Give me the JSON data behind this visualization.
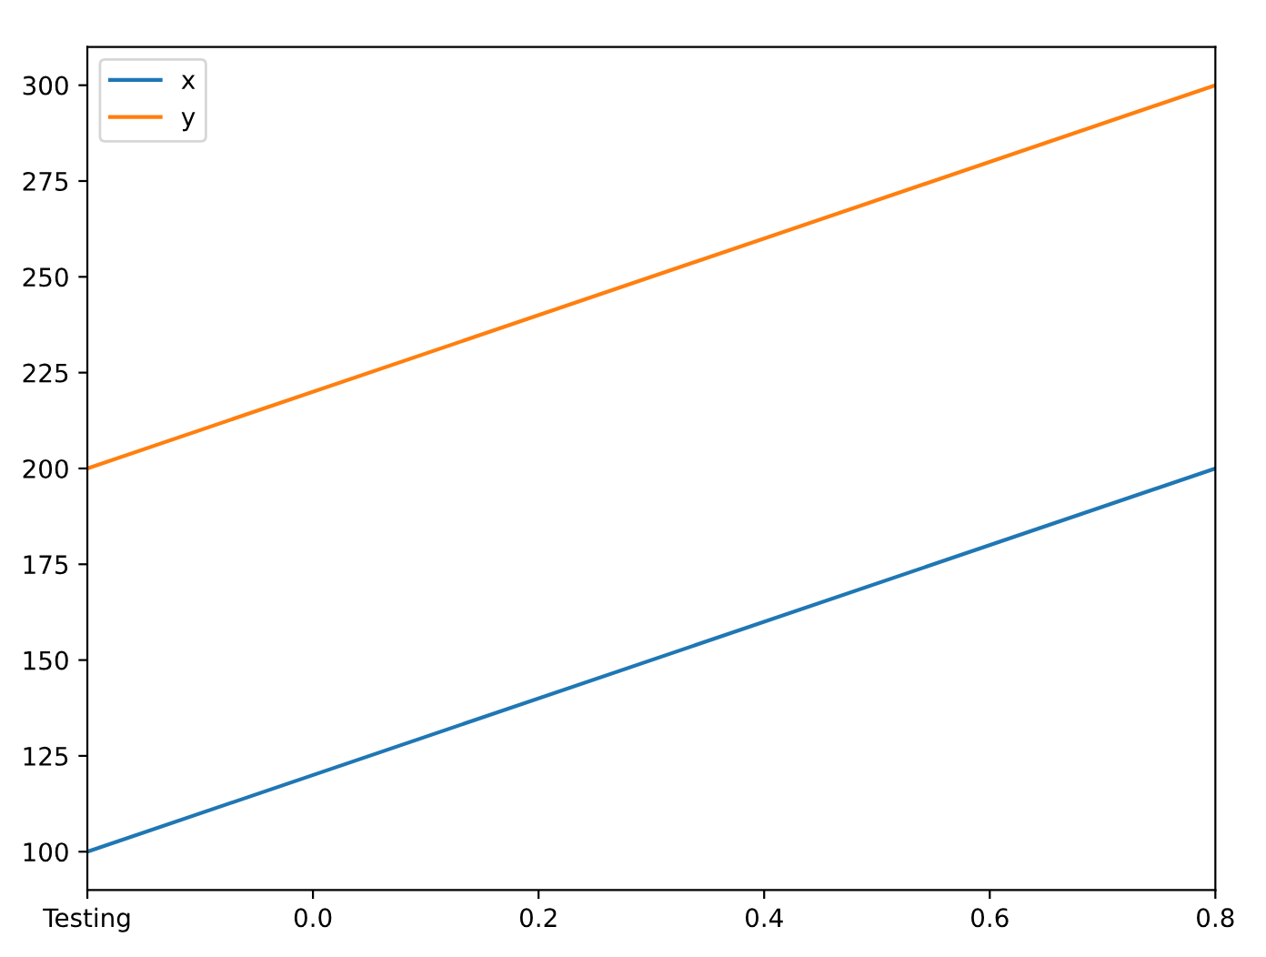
{
  "chart_data": {
    "type": "line",
    "x": [
      -0.2,
      0.8
    ],
    "series": [
      {
        "name": "x",
        "color": "#1f77b4",
        "values": [
          100,
          200
        ]
      },
      {
        "name": "y",
        "color": "#ff7f0e",
        "values": [
          200,
          300
        ]
      }
    ],
    "xlim": [
      -0.2,
      0.8
    ],
    "xticks": [
      {
        "value": -0.2,
        "label": "Testing"
      },
      {
        "value": 0.0,
        "label": "0.0"
      },
      {
        "value": 0.2,
        "label": "0.2"
      },
      {
        "value": 0.4,
        "label": "0.4"
      },
      {
        "value": 0.6,
        "label": "0.6"
      },
      {
        "value": 0.8,
        "label": "0.8"
      }
    ],
    "ylim": [
      90,
      310
    ],
    "yticks": [
      100,
      125,
      150,
      175,
      200,
      225,
      250,
      275,
      300
    ],
    "legend": "top left",
    "grid": false
  }
}
